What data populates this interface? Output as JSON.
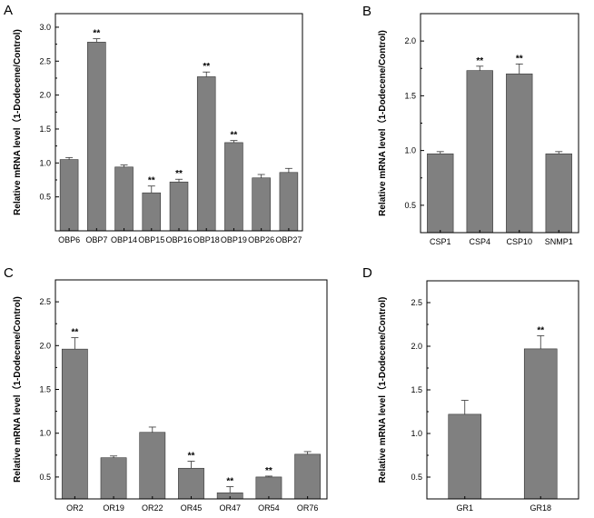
{
  "figure": {
    "chart_data": [
      {
        "type": "bar",
        "panel": "A",
        "ylabel": "Relative mRNA level（1-Dodecene/Control)",
        "ylim": [
          0,
          3.2
        ],
        "yticks": [
          0.5,
          1.0,
          1.5,
          2.0,
          2.5,
          3.0
        ],
        "ytick_labels": [
          "0.5",
          "1.0",
          "1.5",
          "2.0",
          "2.5",
          "3.0"
        ],
        "categories": [
          "OBP6",
          "OBP7",
          "OBP14",
          "OBP15",
          "OBP16",
          "OBP18",
          "OBP19",
          "OBP26",
          "OBP27"
        ],
        "values": [
          1.05,
          2.78,
          0.94,
          0.56,
          0.72,
          2.27,
          1.3,
          0.78,
          0.86
        ],
        "errors": [
          0.03,
          0.05,
          0.03,
          0.1,
          0.04,
          0.07,
          0.03,
          0.05,
          0.06
        ],
        "significance": [
          "",
          "**",
          "",
          "**",
          "**",
          "**",
          "**",
          "",
          ""
        ],
        "bar_color": "#808080"
      },
      {
        "type": "bar",
        "panel": "B",
        "ylabel": "Relative mRNA level（1-Dodecene/Control)",
        "ylim": [
          0.25,
          2.25
        ],
        "yticks": [
          0.5,
          1.0,
          1.5,
          2.0
        ],
        "ytick_labels": [
          "0.5",
          "1.0",
          "1.5",
          "2.0"
        ],
        "categories": [
          "CSP1",
          "CSP4",
          "CSP10",
          "SNMP1"
        ],
        "values": [
          0.97,
          1.73,
          1.7,
          0.97
        ],
        "errors": [
          0.02,
          0.04,
          0.09,
          0.02
        ],
        "significance": [
          "",
          "**",
          "**",
          ""
        ],
        "bar_color": "#808080"
      },
      {
        "type": "bar",
        "panel": "C",
        "ylabel": "Relative mRNA level（1-Dodecene/Control)",
        "ylim": [
          0.25,
          2.75
        ],
        "yticks": [
          0.5,
          1.0,
          1.5,
          2.0,
          2.5
        ],
        "ytick_labels": [
          "0.5",
          "1.0",
          "1.5",
          "2.0",
          "2.5"
        ],
        "categories": [
          "OR2",
          "OR19",
          "OR22",
          "OR45",
          "OR47",
          "OR54",
          "OR76"
        ],
        "values": [
          1.96,
          0.72,
          1.01,
          0.6,
          0.32,
          0.5,
          0.76
        ],
        "errors": [
          0.13,
          0.02,
          0.06,
          0.08,
          0.07,
          0.01,
          0.03
        ],
        "significance": [
          "**",
          "",
          "",
          "**",
          "**",
          "**",
          ""
        ],
        "bar_color": "#808080"
      },
      {
        "type": "bar",
        "panel": "D",
        "ylabel": "Relative mRNA level（1-Dodecene/Control)",
        "ylim": [
          0.25,
          2.75
        ],
        "yticks": [
          0.5,
          1.0,
          1.5,
          2.0,
          2.5
        ],
        "ytick_labels": [
          "0.5",
          "1.0",
          "1.5",
          "2.0",
          "2.5"
        ],
        "categories": [
          "GR1",
          "GR18"
        ],
        "values": [
          1.22,
          1.97
        ],
        "errors": [
          0.16,
          0.15
        ],
        "significance": [
          "",
          "**"
        ],
        "bar_color": "#808080"
      }
    ]
  }
}
